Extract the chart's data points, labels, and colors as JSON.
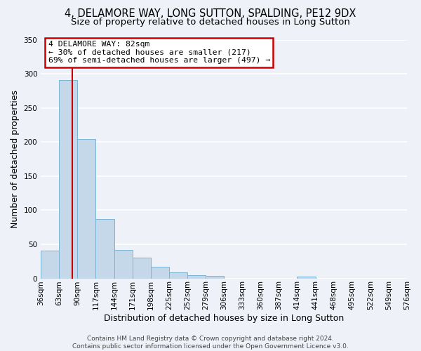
{
  "title": "4, DELAMORE WAY, LONG SUTTON, SPALDING, PE12 9DX",
  "subtitle": "Size of property relative to detached houses in Long Sutton",
  "xlabel": "Distribution of detached houses by size in Long Sutton",
  "ylabel": "Number of detached properties",
  "bar_color": "#c5d8ea",
  "bar_edge_color": "#7ab4d4",
  "vline_x": 82,
  "vline_color": "#cc0000",
  "annotation_text": "4 DELAMORE WAY: 82sqm\n← 30% of detached houses are smaller (217)\n69% of semi-detached houses are larger (497) →",
  "annotation_box_color": "#ffffff",
  "annotation_box_edge": "#cc0000",
  "bin_edges": [
    36,
    63,
    90,
    117,
    144,
    171,
    198,
    225,
    252,
    279,
    306,
    333,
    360,
    387,
    414,
    441,
    468,
    495,
    522,
    549,
    576
  ],
  "bar_heights": [
    41,
    291,
    204,
    87,
    42,
    30,
    17,
    9,
    5,
    4,
    0,
    0,
    0,
    0,
    3,
    0,
    0,
    0,
    0,
    0
  ],
  "ylim": [
    0,
    350
  ],
  "yticks": [
    0,
    50,
    100,
    150,
    200,
    250,
    300,
    350
  ],
  "footer_text": "Contains HM Land Registry data © Crown copyright and database right 2024.\nContains public sector information licensed under the Open Government Licence v3.0.",
  "bg_color": "#eef2f8",
  "grid_color": "#ffffff",
  "title_fontsize": 10.5,
  "subtitle_fontsize": 9.5,
  "axis_label_fontsize": 9,
  "tick_fontsize": 7.5,
  "footer_fontsize": 6.5
}
